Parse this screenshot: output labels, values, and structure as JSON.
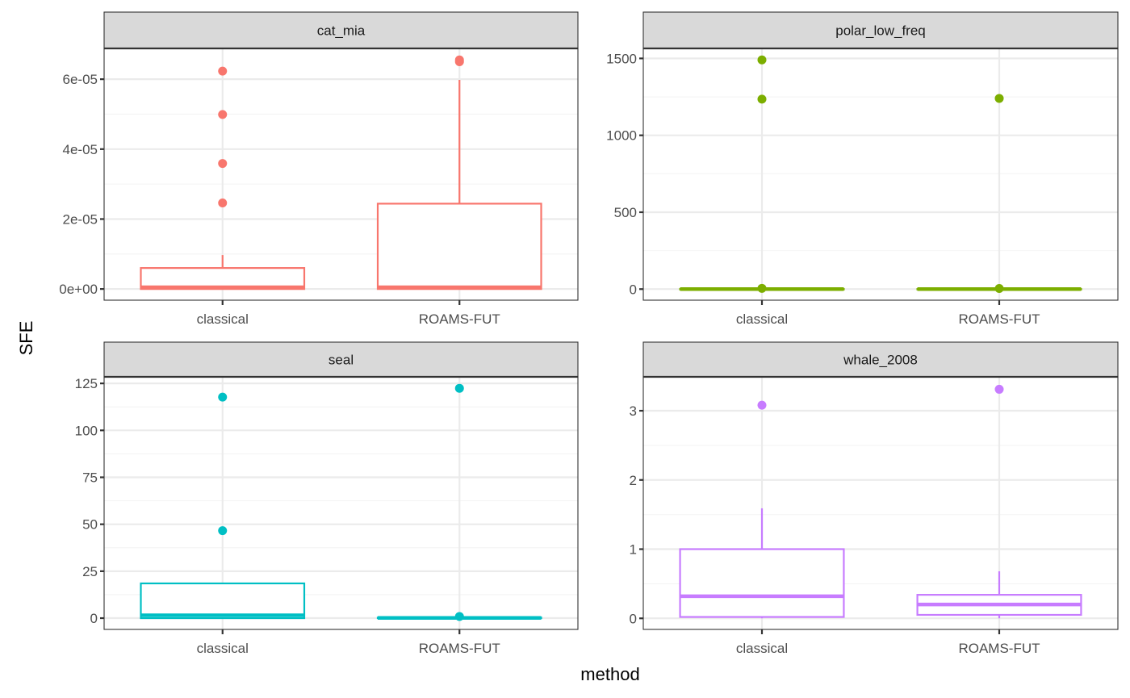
{
  "chart_data": {
    "type": "boxplot",
    "xlabel": "method",
    "ylabel": "SFE",
    "categories": [
      "classical",
      "ROAMS-FUT"
    ],
    "facets": [
      {
        "name": "cat_mia",
        "color": "#F8766D",
        "ylim": [
          -3.2e-06,
          6.88e-05
        ],
        "yticks": [
          0,
          2e-05,
          4e-05,
          6e-05
        ],
        "ytick_labels": [
          "0e+00",
          "2e-05",
          "4e-05",
          "6e-05"
        ],
        "minor_breaks": [
          1e-05,
          3e-05,
          5e-05
        ],
        "boxes": [
          {
            "category": "classical",
            "lower": 0,
            "q1": 0,
            "median": 5e-07,
            "q3": 6e-06,
            "upper": 9.7e-06,
            "outliers": [
              2.46e-05,
              3.59e-05,
              4.99e-05,
              6.23e-05
            ]
          },
          {
            "category": "ROAMS-FUT",
            "lower": 0,
            "q1": 0,
            "median": 5e-07,
            "q3": 2.44e-05,
            "upper": 5.98e-05,
            "outliers": [
              6.5e-05,
              6.55e-05
            ]
          }
        ]
      },
      {
        "name": "polar_low_freq",
        "color": "#7CAE00",
        "ylim": [
          -72,
          1565
        ],
        "yticks": [
          0,
          500,
          1000,
          1500
        ],
        "ytick_labels": [
          "0",
          "500",
          "1000",
          "1500"
        ],
        "minor_breaks": [
          250,
          750,
          1250
        ],
        "boxes": [
          {
            "category": "classical",
            "lower": 0,
            "q1": 0,
            "median": 0,
            "q3": 0.5,
            "upper": 1,
            "outliers": [
              5,
              1235,
              1490
            ]
          },
          {
            "category": "ROAMS-FUT",
            "lower": 0,
            "q1": 0,
            "median": 0,
            "q3": 0.5,
            "upper": 1,
            "outliers": [
              4,
              1240
            ]
          }
        ]
      },
      {
        "name": "seal",
        "color": "#00BFC4",
        "ylim": [
          -6,
          128.5
        ],
        "yticks": [
          0,
          25,
          50,
          75,
          100,
          125
        ],
        "ytick_labels": [
          "0",
          "25",
          "50",
          "75",
          "100",
          "125"
        ],
        "minor_breaks": [
          12.5,
          37.5,
          62.5,
          87.5,
          112.5
        ],
        "boxes": [
          {
            "category": "classical",
            "lower": 0,
            "q1": 0,
            "median": 1.5,
            "q3": 18.5,
            "upper": 18.5,
            "outliers": [
              46.6,
              117.7
            ]
          },
          {
            "category": "ROAMS-FUT",
            "lower": 0,
            "q1": 0,
            "median": 0.1,
            "q3": 0.3,
            "upper": 0.5,
            "outliers": [
              0.9,
              122.4
            ]
          }
        ]
      },
      {
        "name": "whale_2008",
        "color": "#C77CFF",
        "ylim": [
          -0.16,
          3.49
        ],
        "yticks": [
          0,
          1,
          2,
          3
        ],
        "ytick_labels": [
          "0",
          "1",
          "2",
          "3"
        ],
        "minor_breaks": [
          0.5,
          1.5,
          2.5
        ],
        "boxes": [
          {
            "category": "classical",
            "lower": 0.0,
            "q1": 0.02,
            "median": 0.32,
            "q3": 1.0,
            "upper": 1.59,
            "outliers": [
              3.08
            ]
          },
          {
            "category": "ROAMS-FUT",
            "lower": 0.0,
            "q1": 0.05,
            "median": 0.2,
            "q3": 0.34,
            "upper": 0.68,
            "outliers": [
              3.31
            ]
          }
        ]
      }
    ],
    "theme": {
      "strip_fill": "#D9D9D9",
      "grid_major": "#EBEBEB",
      "grid_minor": "#F4F4F4",
      "panel_border": "#333333"
    }
  }
}
